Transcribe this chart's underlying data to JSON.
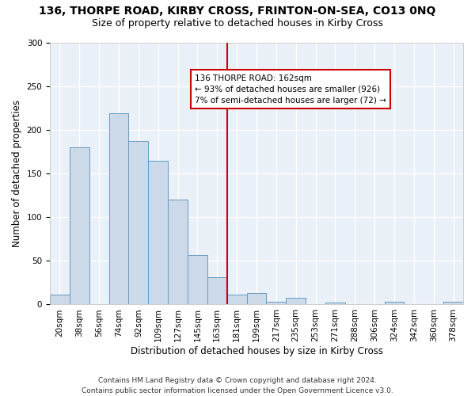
{
  "title": "136, THORPE ROAD, KIRBY CROSS, FRINTON-ON-SEA, CO13 0NQ",
  "subtitle": "Size of property relative to detached houses in Kirby Cross",
  "xlabel": "Distribution of detached houses by size in Kirby Cross",
  "ylabel": "Number of detached properties",
  "bar_color": "#ccd9e8",
  "bar_edge_color": "#6a9abf",
  "background_color": "#eaf0f7",
  "grid_color": "#ffffff",
  "annotation_line_color": "#cc0000",
  "annotation_box_color": "#cc0000",
  "annotation_text": "136 THORPE ROAD: 162sqm\n← 93% of detached houses are smaller (926)\n7% of semi-detached houses are larger (72) →",
  "property_bin_index": 8,
  "bin_labels": [
    "20sqm",
    "38sqm",
    "56sqm",
    "74sqm",
    "92sqm",
    "109sqm",
    "127sqm",
    "145sqm",
    "163sqm",
    "181sqm",
    "199sqm",
    "217sqm",
    "235sqm",
    "253sqm",
    "271sqm",
    "288sqm",
    "306sqm",
    "324sqm",
    "342sqm",
    "360sqm",
    "378sqm"
  ],
  "counts": [
    11,
    180,
    0,
    219,
    187,
    165,
    120,
    57,
    31,
    11,
    13,
    3,
    8,
    0,
    2,
    0,
    0,
    3,
    0,
    0,
    3
  ],
  "ylim": [
    0,
    300
  ],
  "yticks": [
    0,
    50,
    100,
    150,
    200,
    250,
    300
  ],
  "footer": "Contains HM Land Registry data © Crown copyright and database right 2024.\nContains public sector information licensed under the Open Government Licence v3.0.",
  "title_fontsize": 10,
  "subtitle_fontsize": 9,
  "axis_label_fontsize": 8.5,
  "tick_fontsize": 7.5,
  "footer_fontsize": 6.5,
  "annotation_fontsize": 7.5
}
